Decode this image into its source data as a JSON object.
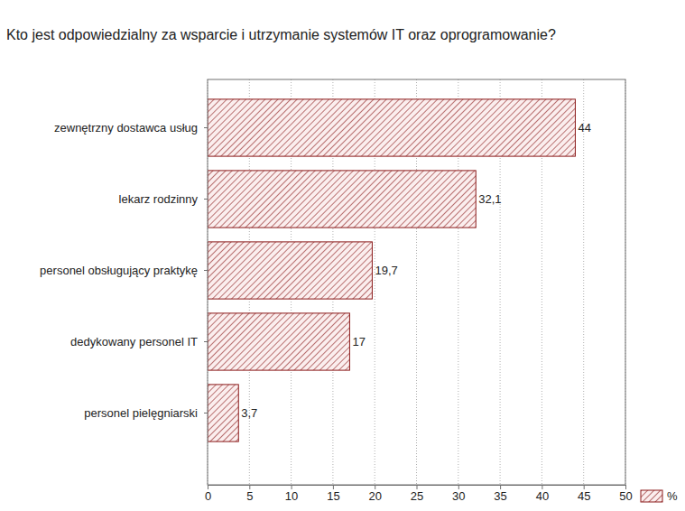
{
  "chart_data": {
    "type": "bar",
    "orientation": "horizontal",
    "title": "Kto jest odpowiedzialny za wsparcie i utrzymanie systemów IT oraz oprogramowanie?",
    "categories": [
      "zewnętrzny dostawca usług",
      "lekarz rodzinny",
      "personel obsługujący praktykę",
      "dedykowany personel IT",
      "personel pielęgniarski"
    ],
    "series": [
      {
        "name": "%",
        "color": "#8b1a1a",
        "values": [
          44,
          32.1,
          19.7,
          17,
          3.7
        ],
        "value_labels": [
          "44",
          "32,1",
          "19,7",
          "17",
          "3,7"
        ]
      }
    ],
    "xlim": [
      0,
      50
    ],
    "xticks": [
      0,
      5,
      10,
      15,
      20,
      25,
      30,
      35,
      40,
      45,
      50
    ],
    "grid": true,
    "data_labels": true,
    "legend": "bottom-right"
  }
}
